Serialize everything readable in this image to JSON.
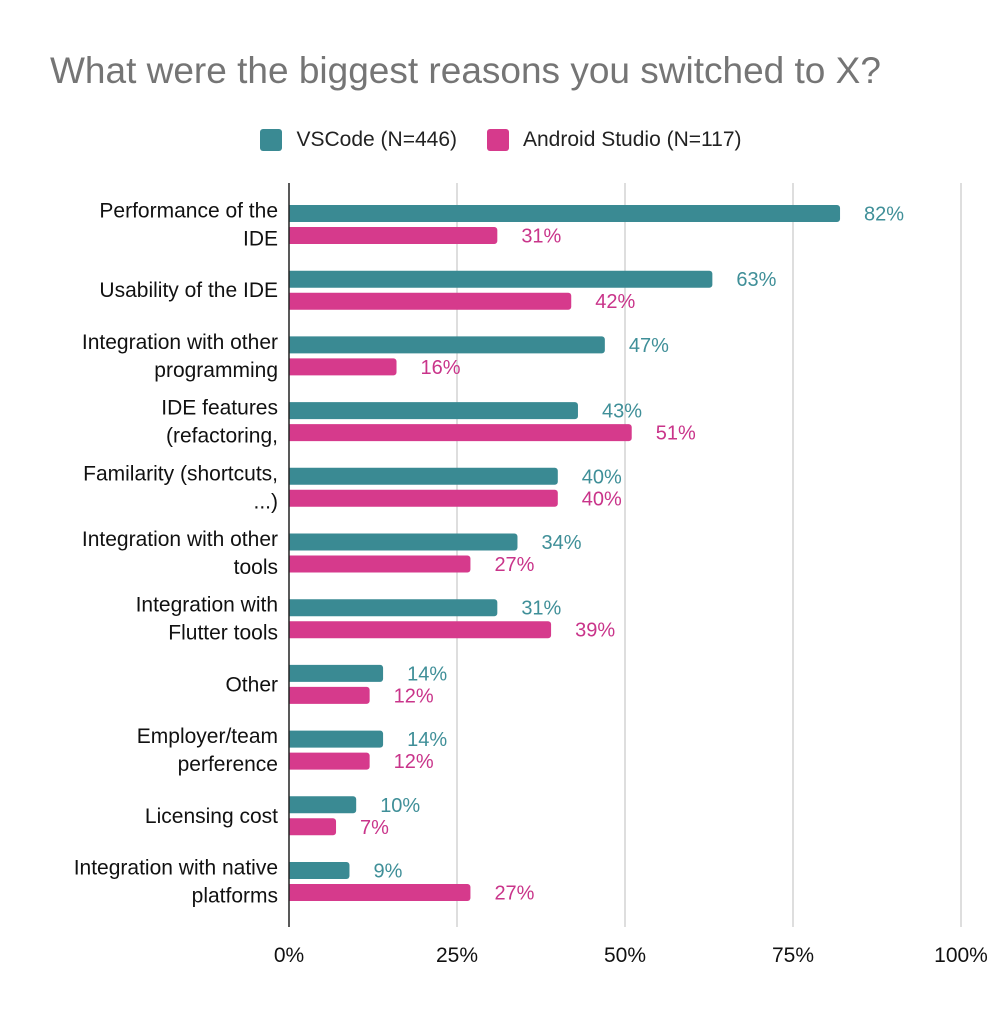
{
  "chart_data": {
    "type": "bar",
    "orientation": "horizontal",
    "title": "What were the biggest reasons you switched to X?",
    "categories": [
      [
        "Performance of the",
        "IDE"
      ],
      [
        "Usability of the IDE"
      ],
      [
        "Integration with other",
        "programming"
      ],
      [
        "IDE features",
        "(refactoring,"
      ],
      [
        "Familarity (shortcuts,",
        "...)"
      ],
      [
        "Integration with other",
        "tools"
      ],
      [
        "Integration with",
        "Flutter tools"
      ],
      [
        "Other"
      ],
      [
        "Employer/team",
        "perference"
      ],
      [
        "Licensing cost"
      ],
      [
        "Integration with native",
        "platforms"
      ]
    ],
    "series": [
      {
        "name": "VSCode (N=446)",
        "color": "#3a8a93",
        "values": [
          82,
          63,
          47,
          43,
          40,
          34,
          31,
          14,
          14,
          10,
          9
        ],
        "labels": [
          "82%",
          "63%",
          "47%",
          "43%",
          "40%",
          "34%",
          "31%",
          "14%",
          "14%",
          "10%",
          "9%"
        ]
      },
      {
        "name": "Android Studio (N=117)",
        "color": "#d63a8c",
        "values": [
          31,
          42,
          16,
          51,
          40,
          27,
          39,
          12,
          12,
          7,
          27
        ],
        "labels": [
          "31%",
          "42%",
          "16%",
          "51%",
          "40%",
          "27%",
          "39%",
          "12%",
          "12%",
          "7%",
          "27%"
        ]
      }
    ],
    "xlim": [
      0,
      100
    ],
    "xticks": [
      0,
      25,
      50,
      75,
      100
    ],
    "xtick_labels": [
      "0%",
      "25%",
      "50%",
      "75%",
      "100%"
    ],
    "grid": true,
    "legend": "top"
  }
}
